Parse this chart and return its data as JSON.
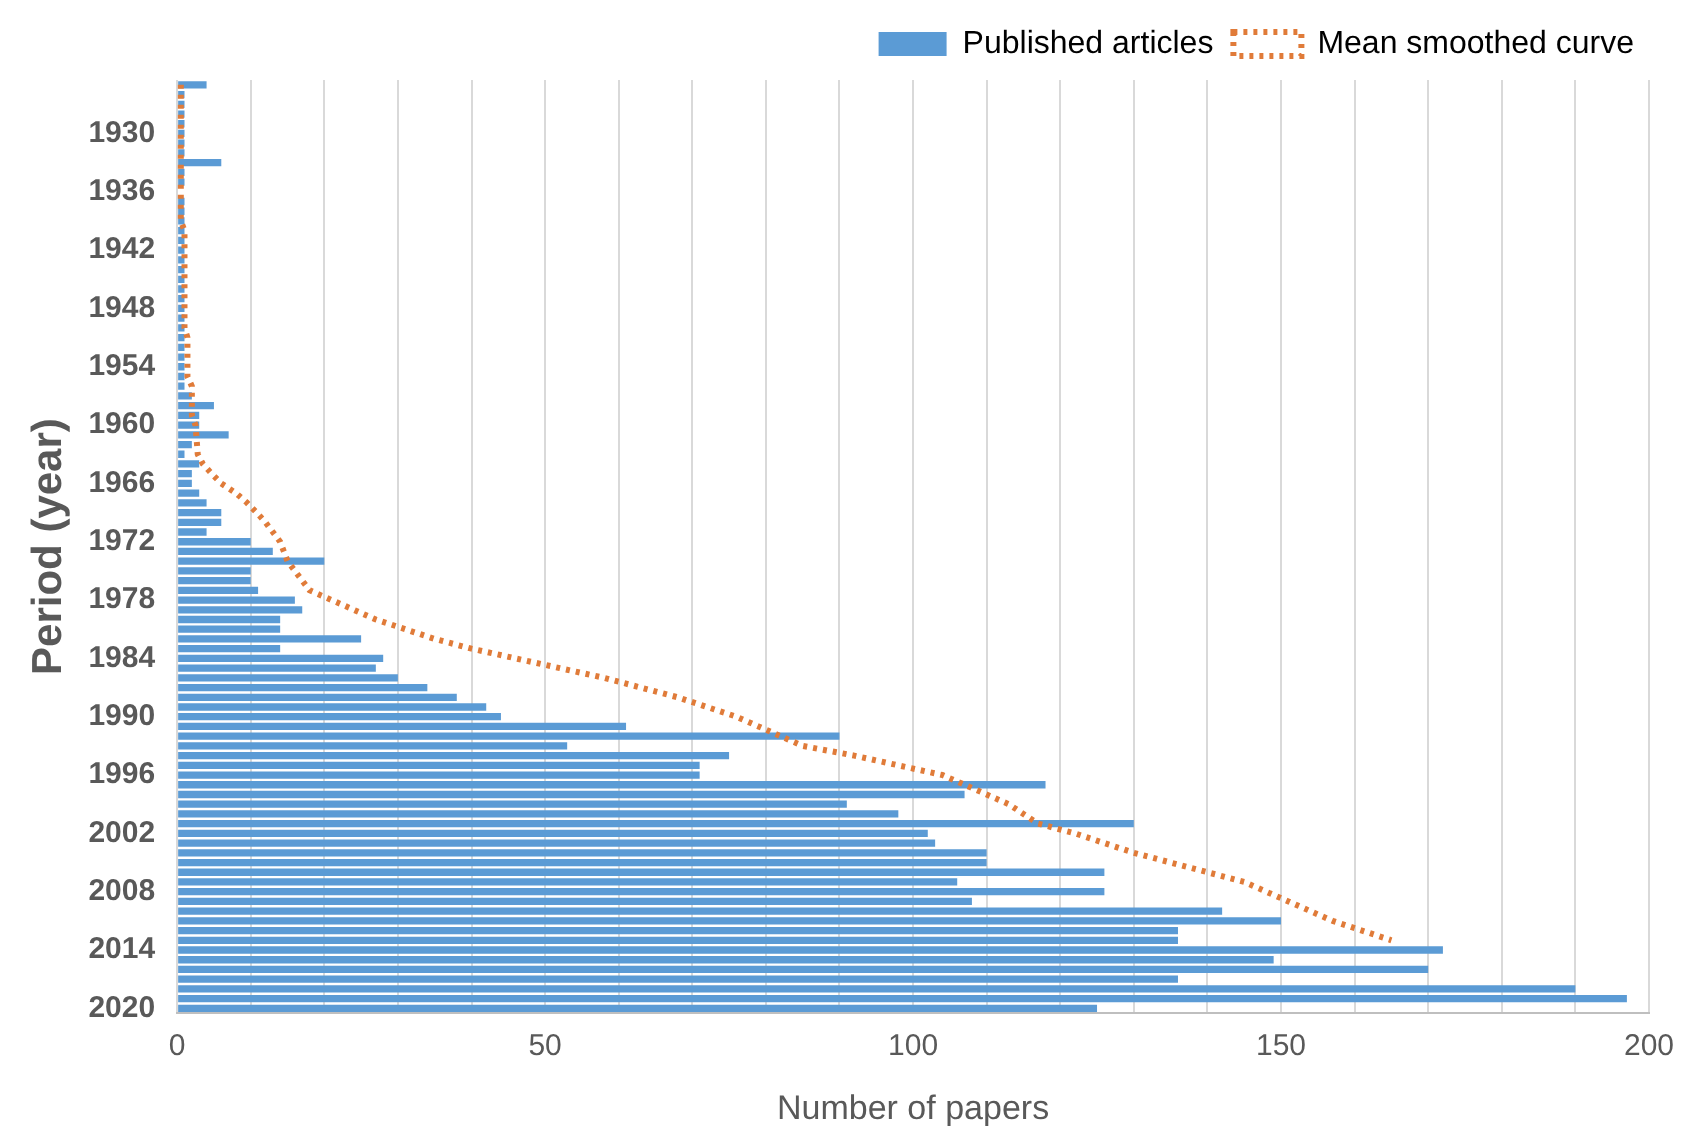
{
  "chart_data": {
    "type": "bar",
    "orientation": "horizontal",
    "xlabel": "Number of papers",
    "ylabel": "Period (year)",
    "categories": [
      null,
      null,
      null,
      null,
      null,
      "1930",
      null,
      null,
      null,
      null,
      null,
      "1936",
      null,
      null,
      null,
      null,
      null,
      "1942",
      null,
      null,
      null,
      null,
      null,
      "1948",
      null,
      null,
      null,
      null,
      null,
      "1954",
      null,
      null,
      null,
      null,
      null,
      "1960",
      null,
      null,
      null,
      null,
      null,
      "1966",
      null,
      null,
      null,
      null,
      null,
      "1972",
      null,
      null,
      null,
      null,
      null,
      "1978",
      null,
      null,
      null,
      null,
      null,
      "1984",
      null,
      null,
      null,
      null,
      null,
      "1990",
      null,
      null,
      null,
      null,
      null,
      "1996",
      null,
      null,
      null,
      null,
      null,
      "2002",
      null,
      null,
      null,
      null,
      null,
      "2008",
      null,
      null,
      null,
      null,
      null,
      "2014",
      null,
      null,
      null,
      null,
      null,
      "2020"
    ],
    "series": [
      {
        "name": "Published articles",
        "color": "#5b9bd5",
        "values": [
          4,
          1,
          1,
          1,
          1,
          1,
          1,
          1,
          6,
          1,
          1,
          0,
          1,
          1,
          1,
          1,
          1,
          1,
          1,
          1,
          1,
          1,
          1,
          1,
          1,
          1,
          1,
          1,
          1,
          1,
          1,
          1,
          2,
          5,
          3,
          3,
          7,
          2,
          1,
          3,
          2,
          2,
          3,
          4,
          6,
          6,
          4,
          10,
          13,
          20,
          10,
          10,
          11,
          16,
          17,
          14,
          14,
          25,
          14,
          28,
          27,
          30,
          34,
          38,
          42,
          44,
          61,
          90,
          53,
          75,
          71,
          71,
          118,
          107,
          91,
          98,
          130,
          102,
          103,
          110,
          110,
          126,
          106,
          126,
          108,
          142,
          150,
          136,
          136,
          172,
          149,
          170,
          136,
          190,
          197,
          125
        ]
      },
      {
        "name": "Mean smoothed curve",
        "type": "line",
        "color": "#e07b39",
        "line_style": "dotted",
        "values": [
          0.5,
          0.5,
          0.5,
          0.5,
          0.5,
          0.5,
          0.5,
          0.5,
          0.5,
          0.5,
          0.5,
          0.5,
          0.5,
          0.5,
          0.5,
          1,
          1,
          1,
          1,
          1,
          1,
          1,
          1,
          1,
          1,
          1,
          1.4,
          1.4,
          1.4,
          1.4,
          1.4,
          2,
          2,
          2,
          2,
          2.5,
          2.6,
          2.7,
          2.8,
          3.5,
          4.7,
          6,
          8,
          9.5,
          10.8,
          12,
          13,
          14,
          14.5,
          15,
          16,
          17,
          18,
          21,
          24,
          27,
          31,
          35,
          40,
          46,
          52,
          58,
          63,
          68,
          72,
          76,
          79,
          82,
          85,
          92,
          98,
          104,
          107,
          110,
          113,
          115,
          117,
          122,
          126,
          130,
          135,
          140,
          145,
          148,
          151,
          154,
          157,
          161,
          165,
          null,
          null,
          null,
          null,
          null,
          null,
          null
        ]
      }
    ],
    "xlim": [
      0,
      200
    ],
    "xticks": [
      0,
      {
        "value": 10,
        "label": null
      },
      {
        "value": 20,
        "label": null
      },
      {
        "value": 30,
        "label": null
      },
      {
        "value": 40,
        "label": null
      },
      50,
      {
        "value": 60,
        "label": null
      },
      {
        "value": 70,
        "label": null
      },
      {
        "value": 80,
        "label": null
      },
      {
        "value": 90,
        "label": null
      },
      100,
      {
        "value": 110,
        "label": null
      },
      {
        "value": 120,
        "label": null
      },
      {
        "value": 130,
        "label": null
      },
      {
        "value": 140,
        "label": null
      },
      150,
      {
        "value": 160,
        "label": null
      },
      {
        "value": 170,
        "label": null
      },
      {
        "value": 180,
        "label": null
      },
      {
        "value": 190,
        "label": null
      },
      200
    ],
    "grid": "x",
    "legend": "top right",
    "marker": "none"
  }
}
